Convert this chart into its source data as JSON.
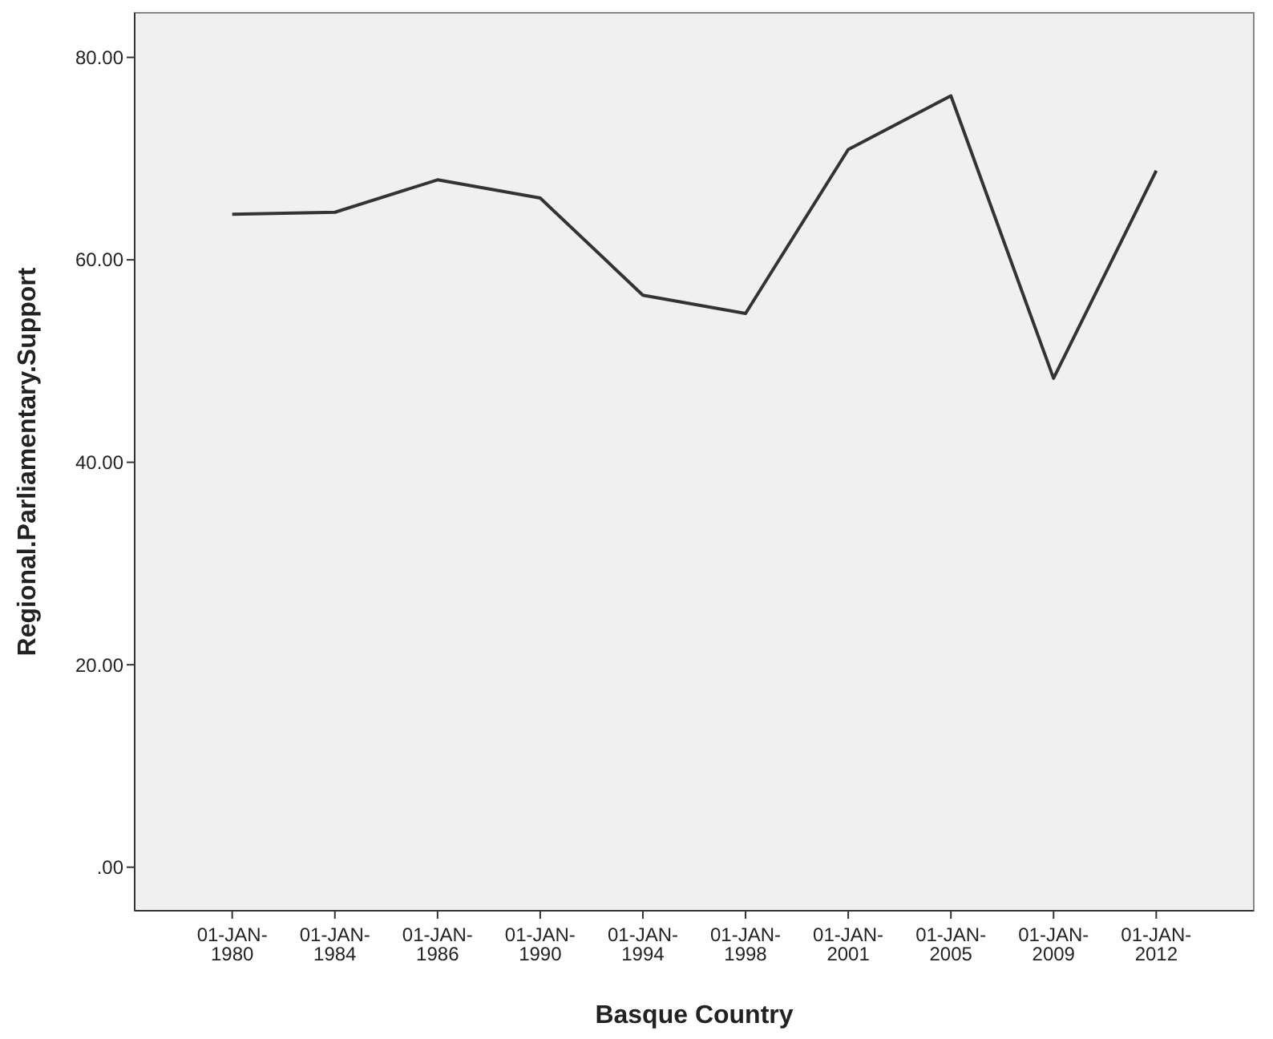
{
  "chart_data": {
    "type": "line",
    "xlabel": "Basque Country",
    "ylabel": "Regional.Parliamentary.Support",
    "categories": [
      "01-JAN-1980",
      "01-JAN-1984",
      "01-JAN-1986",
      "01-JAN-1990",
      "01-JAN-1994",
      "01-JAN-1998",
      "01-JAN-2001",
      "01-JAN-2005",
      "01-JAN-2009",
      "01-JAN-2012"
    ],
    "series": [
      {
        "color": "#333333",
        "values": [
          64.5,
          64.7,
          67.9,
          66.1,
          56.5,
          54.7,
          70.9,
          76.2,
          48.3,
          68.8
        ]
      }
    ],
    "ylim": [
      -4.3,
      84.4
    ],
    "yticks": [
      {
        "value": 0,
        "label": ".00"
      },
      {
        "value": 20,
        "label": "20.00"
      },
      {
        "value": 40,
        "label": "40.00"
      },
      {
        "value": 60,
        "label": "60.00"
      },
      {
        "value": 80,
        "label": "80.00"
      }
    ],
    "marker": "none",
    "line_style": "solid"
  }
}
